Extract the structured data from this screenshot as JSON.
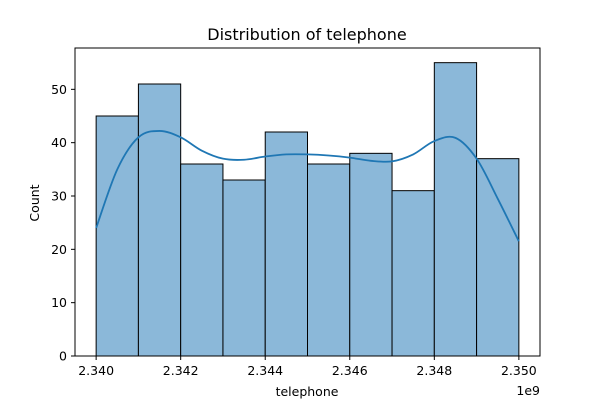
{
  "chart_data": {
    "type": "bar",
    "title": "Distribution of telephone",
    "xlabel": "telephone",
    "ylabel": "Count",
    "x_offset_label": "1e9",
    "bin_edges": [
      2.34,
      2.341,
      2.342,
      2.343,
      2.344,
      2.345,
      2.346,
      2.347,
      2.348,
      2.349,
      2.35
    ],
    "values": [
      45,
      51,
      36,
      33,
      42,
      36,
      38,
      31,
      55,
      37
    ],
    "xlim": [
      2.3395,
      2.3505
    ],
    "ylim": [
      0,
      57.75
    ],
    "x_ticks": [
      2.34,
      2.342,
      2.344,
      2.346,
      2.348,
      2.35
    ],
    "x_tick_labels": [
      "2.340",
      "2.342",
      "2.344",
      "2.346",
      "2.348",
      "2.350"
    ],
    "y_ticks": [
      0,
      10,
      20,
      30,
      40,
      50
    ],
    "y_tick_labels": [
      "0",
      "10",
      "20",
      "30",
      "40",
      "50"
    ],
    "kde": {
      "x": [
        2.34,
        2.3405,
        2.341,
        2.3415,
        2.342,
        2.3425,
        2.343,
        2.3435,
        2.344,
        2.3445,
        2.345,
        2.3455,
        2.346,
        2.3465,
        2.347,
        2.3475,
        2.348,
        2.3485,
        2.349,
        2.3495,
        2.35
      ],
      "y": [
        24,
        35,
        41,
        42.2,
        41,
        38.5,
        37,
        36.8,
        37.4,
        37.8,
        37.8,
        37.6,
        37.2,
        36.6,
        36.5,
        37.8,
        40.3,
        40.9,
        37,
        29.5,
        21.5
      ]
    },
    "bar_fill": "#8bb8d9",
    "bar_edge": "#000000",
    "kde_color": "#1f77b4",
    "grid": false,
    "legend": "none"
  }
}
